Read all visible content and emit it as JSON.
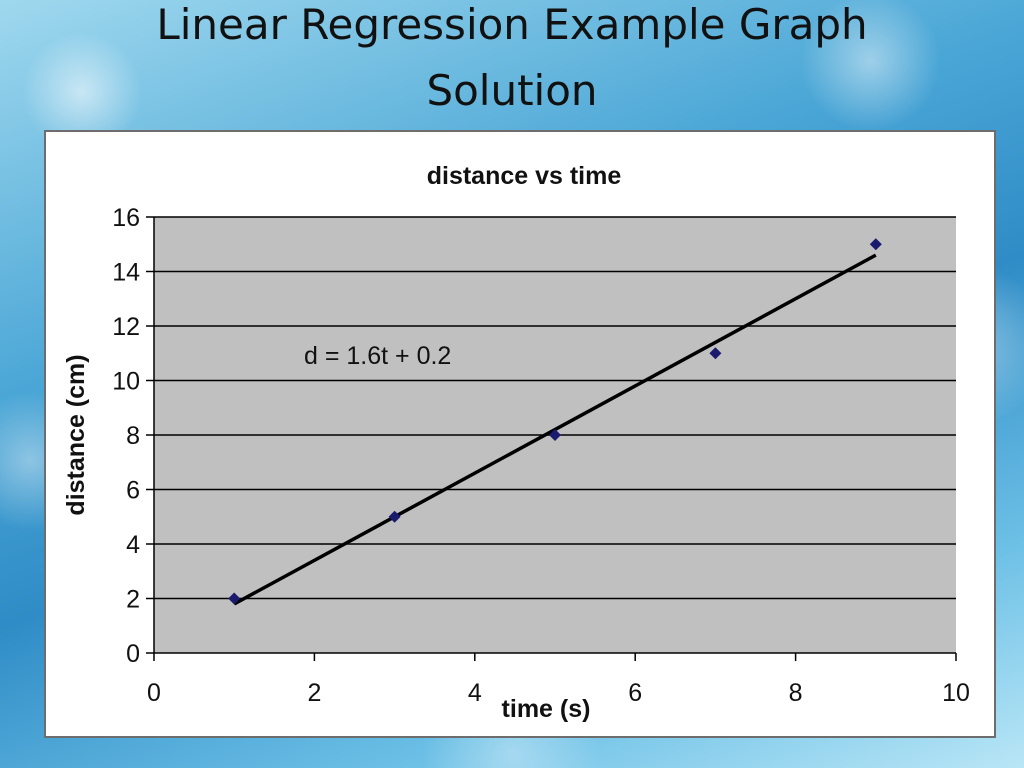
{
  "slide": {
    "title_line1": "Linear Regression Example Graph",
    "title_line2": "Solution"
  },
  "chart_data": {
    "type": "scatter",
    "title": "distance vs time",
    "xlabel": "time (s)",
    "ylabel": "distance (cm)",
    "xlim": [
      0,
      10
    ],
    "ylim": [
      0,
      16
    ],
    "xticks": [
      0,
      2,
      4,
      6,
      8,
      10
    ],
    "yticks": [
      0,
      2,
      4,
      6,
      8,
      10,
      12,
      14,
      16
    ],
    "grid": "horizontal",
    "series": [
      {
        "points": [
          {
            "x": 1,
            "y": 2
          },
          {
            "x": 3,
            "y": 5
          },
          {
            "x": 5,
            "y": 8
          },
          {
            "x": 7,
            "y": 11
          },
          {
            "x": 9,
            "y": 15
          }
        ],
        "color": "#1a1a6e"
      }
    ],
    "trendline": {
      "slope": 1.6,
      "intercept": 0.2,
      "x_range": [
        1,
        9
      ],
      "color": "#000000"
    },
    "annotations": [
      {
        "text": "d = 1.6t + 0.2"
      }
    ],
    "colors": {
      "plot_area": "#c0c0c0",
      "gridline": "#000000",
      "marker": "#1a1a6e"
    }
  }
}
